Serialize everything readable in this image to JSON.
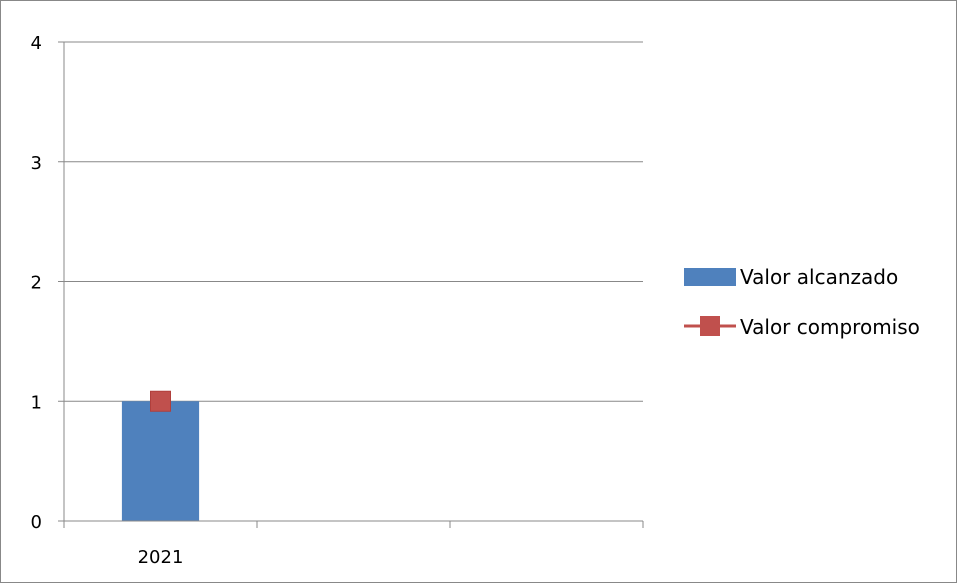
{
  "chart_data": {
    "type": "bar",
    "categories": [
      "2021",
      "",
      ""
    ],
    "series": [
      {
        "name": "Valor alcanzado",
        "kind": "bar",
        "color": "#4F81BD",
        "values": [
          1,
          null,
          null
        ]
      },
      {
        "name": "Valor compromiso",
        "kind": "line-marker",
        "color": "#C0504D",
        "marker": "square",
        "values": [
          1,
          null,
          null
        ]
      }
    ],
    "ylim": [
      0,
      4
    ],
    "yticks": [
      "0",
      "1",
      "2",
      "3",
      "4"
    ],
    "grid": true,
    "legend": "right"
  }
}
